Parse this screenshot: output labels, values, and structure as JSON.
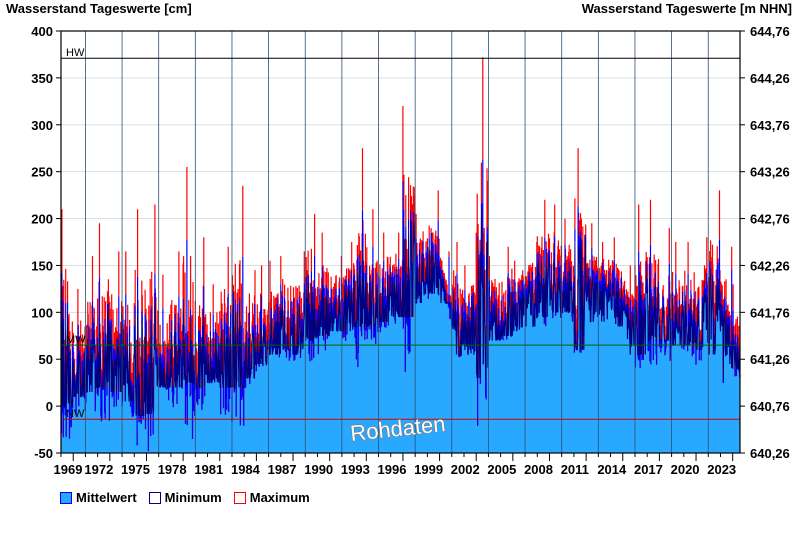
{
  "chart_data": {
    "type": "area",
    "title_left": "Wasserstand Tageswerte [cm]",
    "title_right": "Wasserstand Tageswerte [m NHN]",
    "ylim": [
      -50,
      400
    ],
    "yticks": [
      -50,
      0,
      50,
      100,
      150,
      200,
      250,
      300,
      350,
      400
    ],
    "yticks_right": [
      "640,26",
      "640,76",
      "641,26",
      "641,76",
      "642,26",
      "642,76",
      "643,26",
      "643,76",
      "644,26",
      "644,76"
    ],
    "xlim": [
      1970.0,
      2025.6
    ],
    "xticks": [
      "1969",
      "1972",
      "1975",
      "1978",
      "1981",
      "1984",
      "1987",
      "1990",
      "1993",
      "1996",
      "1999",
      "2002",
      "2005",
      "2008",
      "2011",
      "2014",
      "2017",
      "2020",
      "2023"
    ],
    "reference_lines": [
      {
        "label": "HW",
        "value": 371,
        "color": "#000000"
      },
      {
        "label": "MW",
        "value": 65,
        "color": "#006400"
      },
      {
        "label": "NW",
        "value": -14,
        "color": "#cc0000"
      }
    ],
    "years": [
      1970,
      1971,
      1972,
      1973,
      1974,
      1975,
      1976,
      1977,
      1978,
      1979,
      1980,
      1981,
      1982,
      1983,
      1984,
      1985,
      1986,
      1987,
      1988,
      1989,
      1990,
      1991,
      1992,
      1993,
      1994,
      1995,
      1996,
      1997,
      1998,
      1999,
      2000,
      2001,
      2002,
      2003,
      2004,
      2005,
      2006,
      2007,
      2008,
      2009,
      2010,
      2011,
      2012,
      2013,
      2014,
      2015,
      2016,
      2017,
      2018,
      2019,
      2020,
      2021,
      2022,
      2023,
      2024,
      2025
    ],
    "series": [
      {
        "name": "Mittelwert",
        "color": "#0000ff",
        "fill": "#29a8ff",
        "values": [
          40,
          30,
          40,
          50,
          45,
          50,
          30,
          30,
          50,
          45,
          60,
          50,
          50,
          45,
          45,
          55,
          70,
          80,
          85,
          80,
          95,
          95,
          100,
          100,
          110,
          110,
          110,
          115,
          120,
          140,
          150,
          150,
          90,
          85,
          100,
          95,
          100,
          105,
          115,
          120,
          130,
          130,
          120,
          130,
          120,
          120,
          110,
          90,
          100,
          95,
          90,
          90,
          85,
          100,
          110,
          60
        ]
      },
      {
        "name": "Minimum",
        "color": "#000080",
        "values": [
          0,
          10,
          15,
          20,
          15,
          5,
          -10,
          -8,
          20,
          20,
          25,
          20,
          25,
          20,
          20,
          30,
          45,
          55,
          60,
          55,
          70,
          75,
          80,
          80,
          85,
          85,
          90,
          95,
          95,
          110,
          120,
          110,
          55,
          55,
          30,
          70,
          75,
          80,
          85,
          95,
          100,
          100,
          60,
          90,
          90,
          85,
          55,
          55,
          70,
          70,
          65,
          65,
          60,
          55,
          25,
          40
        ]
      },
      {
        "name": "Maximum",
        "color": "#ff0000",
        "values": [
          210,
          125,
          160,
          195,
          165,
          165,
          210,
          215,
          140,
          165,
          255,
          180,
          130,
          170,
          235,
          145,
          150,
          155,
          160,
          165,
          205,
          185,
          160,
          175,
          275,
          210,
          185,
          185,
          320,
          205,
          230,
          165,
          175,
          150,
          372,
          160,
          170,
          155,
          175,
          220,
          215,
          200,
          275,
          195,
          175,
          180,
          150,
          215,
          220,
          190,
          175,
          175,
          180,
          230,
          170,
          130
        ]
      }
    ],
    "annotation": "Rohdaten"
  },
  "legend": [
    {
      "label": "Mittelwert"
    },
    {
      "label": "Minimum"
    },
    {
      "label": "Maximum"
    }
  ]
}
